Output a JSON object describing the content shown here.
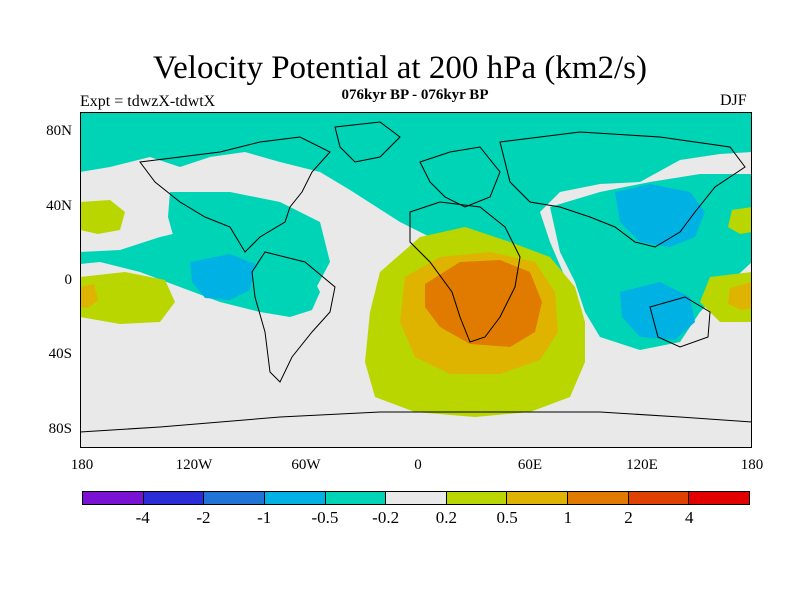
{
  "title": "Velocity Potential at 200 hPa (km2/s)",
  "subtitle": "076kyr BP - 076kyr BP",
  "expt": "Expt = tdwzX-tdwtX",
  "season": "DJF",
  "lat_labels": [
    "80N",
    "40N",
    "0",
    "40S",
    "80S"
  ],
  "lon_labels": [
    "180",
    "120W",
    "60W",
    "0",
    "60E",
    "120E",
    "180"
  ],
  "colorbar": {
    "colors": [
      "#7a12d4",
      "#2b2dd6",
      "#1f74d6",
      "#00b2e3",
      "#00d4b6",
      "#e9e9e9",
      "#b9d600",
      "#deb400",
      "#e07b00",
      "#df4200",
      "#e30000"
    ],
    "labels": [
      "-4",
      "-2",
      "-1",
      "-0.5",
      "-0.2",
      "0.2",
      "0.5",
      "1",
      "2",
      "4"
    ]
  },
  "map_colors": {
    "background": "#e9e9e9",
    "neg_light": "#00d4b6",
    "neg_mid": "#00b2e3",
    "pos_light": "#b9d600",
    "pos_mid": "#deb400",
    "pos_high": "#e07b00"
  }
}
